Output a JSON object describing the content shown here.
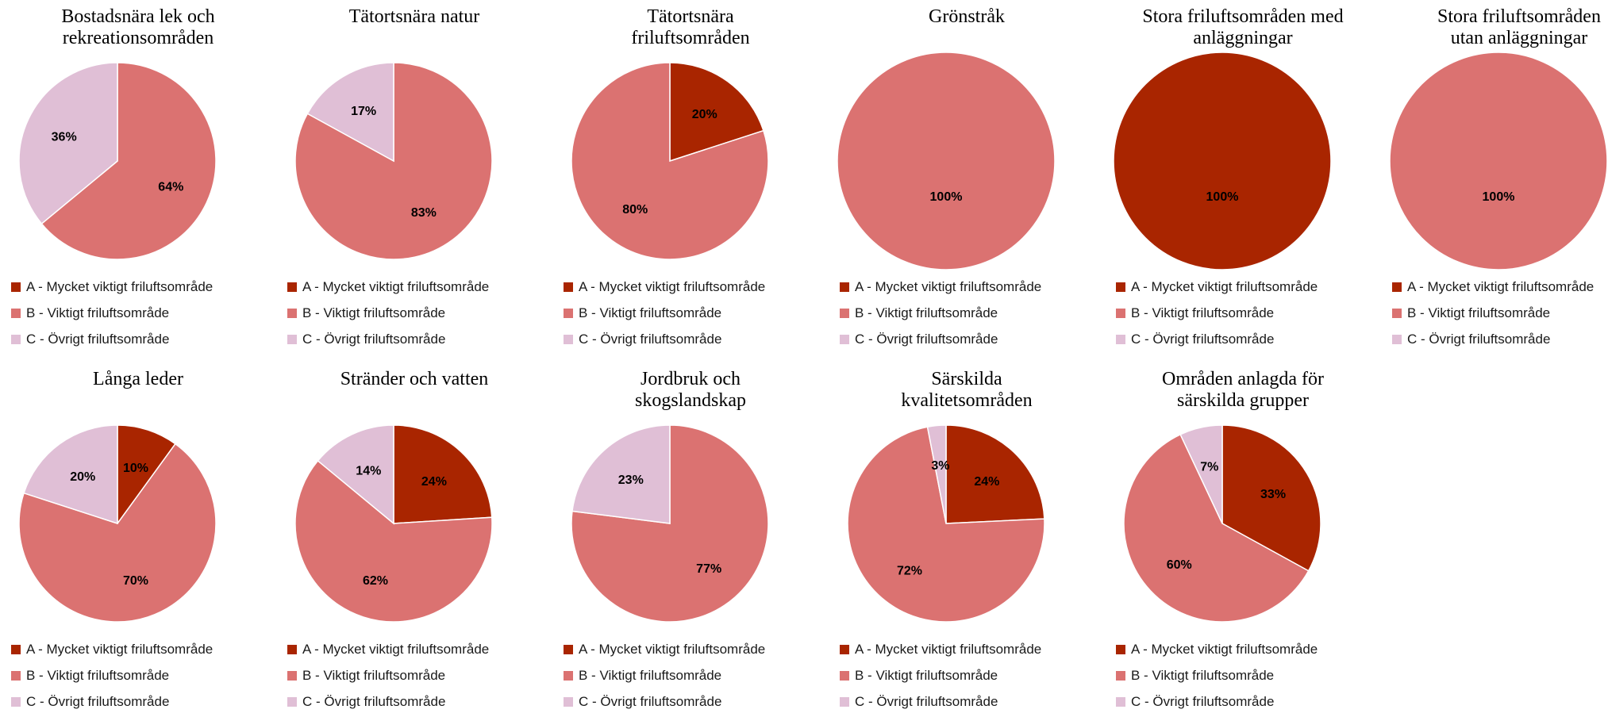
{
  "legend": [
    {
      "label": "A - Mycket viktigt friluftsområde",
      "color": "#a92500"
    },
    {
      "label": "B - Viktigt friluftsområde",
      "color": "#db7271"
    },
    {
      "label": "C - Övrigt friluftsområde",
      "color": "#e0bfd6"
    }
  ],
  "chart_data": [
    {
      "type": "pie",
      "title": [
        "Bostadsnära lek och",
        "rekreationsområden"
      ],
      "values": [
        0,
        64,
        36
      ],
      "labels": [
        "",
        "64%",
        "36%"
      ]
    },
    {
      "type": "pie",
      "title": [
        "Tätortsnära natur"
      ],
      "values": [
        0,
        83,
        17
      ],
      "labels": [
        "",
        "83%",
        "17%"
      ]
    },
    {
      "type": "pie",
      "title": [
        "Tätortsnära",
        "friluftsområden"
      ],
      "values": [
        20,
        80,
        0
      ],
      "labels": [
        "20%",
        "80%",
        ""
      ]
    },
    {
      "type": "pie",
      "title": [
        "Grönstråk"
      ],
      "values": [
        0,
        100,
        0
      ],
      "labels": [
        "",
        "100%",
        ""
      ]
    },
    {
      "type": "pie",
      "title": [
        "Stora friluftsområden med",
        "anläggningar"
      ],
      "values": [
        100,
        0,
        0
      ],
      "labels": [
        "100%",
        "",
        ""
      ]
    },
    {
      "type": "pie",
      "title": [
        "Stora friluftsområden",
        "utan anläggningar"
      ],
      "values": [
        0,
        100,
        0
      ],
      "labels": [
        "",
        "100%",
        ""
      ]
    },
    {
      "type": "pie",
      "title": [
        "Långa leder"
      ],
      "values": [
        10,
        70,
        20
      ],
      "labels": [
        "10%",
        "70%",
        "20%"
      ]
    },
    {
      "type": "pie",
      "title": [
        "Stränder och vatten"
      ],
      "values": [
        24,
        62,
        14
      ],
      "labels": [
        "24%",
        "62%",
        "14%"
      ]
    },
    {
      "type": "pie",
      "title": [
        "Jordbruk och",
        "skogslandskap"
      ],
      "values": [
        0,
        77,
        23
      ],
      "labels": [
        "",
        "77%",
        "23%"
      ]
    },
    {
      "type": "pie",
      "title": [
        "Särskilda",
        "kvalitetsområden"
      ],
      "values": [
        24,
        72,
        3
      ],
      "labels": [
        "24%",
        "72%",
        "3%"
      ]
    },
    {
      "type": "pie",
      "title": [
        "Områden anlagda för",
        "särskilda grupper"
      ],
      "values": [
        33,
        60,
        7
      ],
      "labels": [
        "33%",
        "60%",
        "7%"
      ]
    }
  ]
}
